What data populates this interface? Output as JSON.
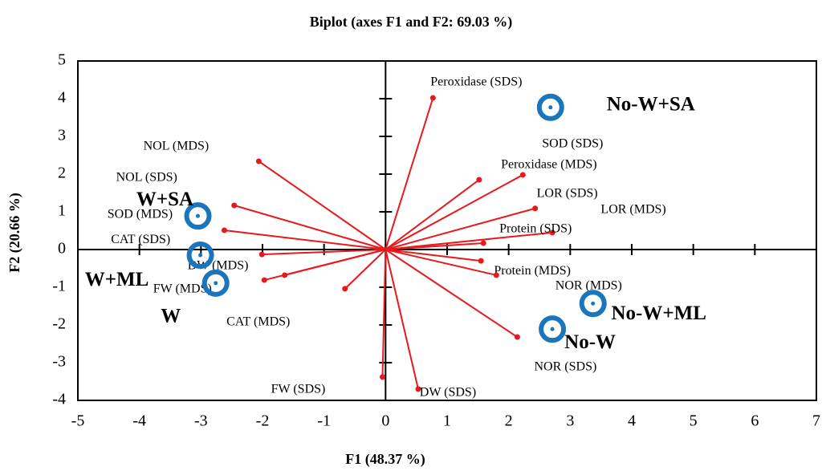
{
  "chart_data": {
    "type": "biplot",
    "title": "Biplot (axes F1 and F2: 69.03 %)",
    "x_label": "F1 (48.37 %)",
    "y_label": "F2 (20.66 %)",
    "xlim": [
      -5,
      7
    ],
    "ylim": [
      -4,
      5
    ],
    "xticks": [
      -5,
      -4,
      -3,
      -2,
      -1,
      0,
      1,
      2,
      3,
      4,
      5,
      6,
      7
    ],
    "yticks": [
      -4,
      -3,
      -2,
      -1,
      0,
      1,
      2,
      3,
      4,
      5
    ],
    "variables": {
      "color": "#e8191c",
      "labels": [
        "Peroxidase (SDS)",
        "Peroxidase (MDS)",
        "SOD (SDS)",
        "LOR (SDS)",
        "LOR (MDS)",
        "Protein (SDS)",
        "Protein (MDS)",
        "NOR (MDS)",
        "NOR (SDS)",
        "DW (SDS)",
        "FW (SDS)",
        "NOL (MDS)",
        "NOL (SDS)",
        "SOD (MDS)",
        "CAT (SDS)",
        "DW (MDS)",
        "FW (MDS)",
        "CAT (MDS)"
      ],
      "x": [
        0.77,
        1.52,
        2.23,
        2.43,
        2.71,
        1.59,
        1.55,
        1.8,
        2.14,
        0.53,
        -0.05,
        -2.06,
        -2.46,
        -2.62,
        -2.01,
        -1.64,
        -1.97,
        -0.66
      ],
      "y": [
        4.02,
        1.85,
        1.98,
        1.09,
        0.45,
        0.17,
        -0.3,
        -0.68,
        -2.32,
        -3.7,
        -3.38,
        2.34,
        1.17,
        0.51,
        -0.13,
        -0.68,
        -0.81,
        -1.04
      ]
    },
    "observations": {
      "color": "#1a75bc",
      "labels": [
        "W+SA",
        "W+ML",
        "W",
        "No-W+SA",
        "No-W+ML",
        "No-W"
      ],
      "x": [
        -3.05,
        -3.01,
        -2.76,
        2.68,
        3.37,
        2.71
      ],
      "y": [
        0.89,
        -0.15,
        -0.89,
        3.77,
        -1.43,
        -2.11
      ]
    }
  }
}
